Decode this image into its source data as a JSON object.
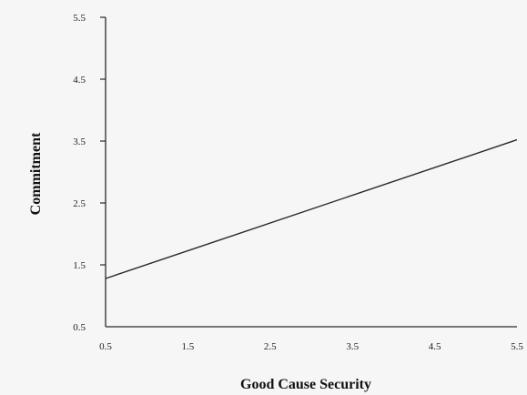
{
  "chart_data": {
    "type": "line",
    "xlabel": "Good Cause Security",
    "ylabel": "Commitment",
    "xlim": [
      0.5,
      5.5
    ],
    "ylim": [
      0.5,
      5.5
    ],
    "x_ticks": [
      "0.5",
      "1.5",
      "2.5",
      "3.5",
      "4.5",
      "5.5"
    ],
    "y_ticks": [
      "0.5",
      "1.5",
      "2.5",
      "3.5",
      "4.5",
      "5.5"
    ],
    "series": [
      {
        "x": [
          0.5,
          5.5
        ],
        "y": [
          1.28,
          3.52
        ]
      }
    ],
    "grid": false,
    "legend": "none",
    "colors": {
      "line": "#2a2a2a",
      "axis": "#2a2a2a",
      "background": "#f6f6f6"
    }
  }
}
